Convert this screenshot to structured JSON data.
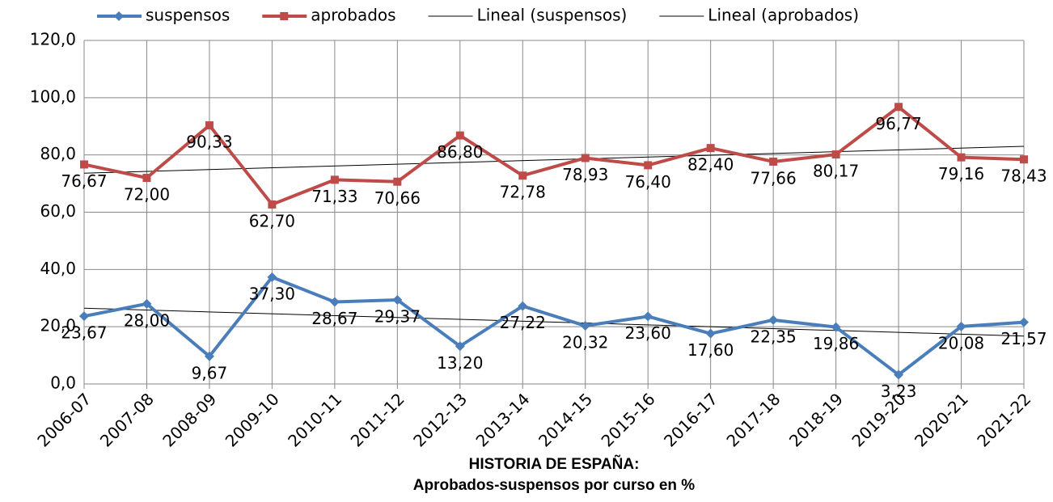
{
  "chart_data": {
    "type": "line",
    "title": "HISTORIA DE ESPAÑA:",
    "subtitle": "Aprobados-suspensos por curso en %",
    "categories": [
      "2006-07",
      "2007-08",
      "2008-09",
      "2009-10",
      "2010-11",
      "2011-12",
      "2012-13",
      "2013-14",
      "2014-15",
      "2015-16",
      "2016-17",
      "2017-18",
      "2018-19",
      "2019-20",
      "2020-21",
      "2021-22"
    ],
    "series": [
      {
        "name": "suspensos",
        "color": "#4a7ebb",
        "marker": "diamond",
        "trendline": "Lineal (suspensos)",
        "values": [
          23.67,
          28.0,
          9.67,
          37.3,
          28.67,
          29.37,
          13.2,
          27.22,
          20.32,
          23.6,
          17.6,
          22.35,
          19.86,
          3.23,
          20.08,
          21.57
        ],
        "value_labels": [
          "23,67",
          "28,00",
          "9,67",
          "37,30",
          "28,67",
          "29,37",
          "13,20",
          "27,22",
          "20,32",
          "23,60",
          "17,60",
          "22,35",
          "19,86",
          "3,23",
          "20,08",
          "21,57"
        ]
      },
      {
        "name": "aprobados",
        "color": "#be4b48",
        "marker": "square",
        "trendline": "Lineal (aprobados)",
        "values": [
          76.67,
          72.0,
          90.33,
          62.7,
          71.33,
          70.66,
          86.8,
          72.78,
          78.93,
          76.4,
          82.4,
          77.66,
          80.17,
          96.77,
          79.16,
          78.43
        ],
        "value_labels": [
          "76,67",
          "72,00",
          "90,33",
          "62,70",
          "71,33",
          "70,66",
          "86,80",
          "72,78",
          "78,93",
          "76,40",
          "82,40",
          "77,66",
          "80,17",
          "96,77",
          "79,16",
          "78,43"
        ]
      }
    ],
    "trendline_color": "#000000",
    "ylim": [
      0,
      120
    ],
    "yticks": [
      {
        "value": 0,
        "label": "0,0"
      },
      {
        "value": 20,
        "label": "20,0"
      },
      {
        "value": 40,
        "label": "40,0"
      },
      {
        "value": 60,
        "label": "60,0"
      },
      {
        "value": 80,
        "label": "80,0"
      },
      {
        "value": 100,
        "label": "100,0"
      },
      {
        "value": 120,
        "label": "120,0"
      }
    ],
    "grid": true,
    "legend": "top"
  }
}
